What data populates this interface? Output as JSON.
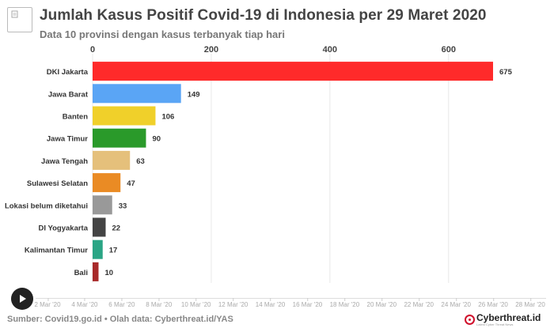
{
  "header": {
    "title": "Jumlah Kasus Positif Covid-19 di Indonesia per 29 Maret 2020",
    "subtitle": "Data 10 provinsi dengan kasus terbanyak tiap hari"
  },
  "chart_data": {
    "type": "bar",
    "orientation": "horizontal",
    "categories": [
      "DKI Jakarta",
      "Jawa Barat",
      "Banten",
      "Jawa Timur",
      "Jawa Tengah",
      "Sulawesi Selatan",
      "Lokasi belum diketahui",
      "DI Yogyakarta",
      "Kalimantan Timur",
      "Bali"
    ],
    "values": [
      675,
      149,
      106,
      90,
      63,
      47,
      33,
      22,
      17,
      10
    ],
    "colors": [
      "#ff2a2a",
      "#5aa5f5",
      "#f0d02a",
      "#2a9a2a",
      "#e5c07b",
      "#ea8b24",
      "#999999",
      "#444444",
      "#2aa585",
      "#a82a2a"
    ],
    "xlim": [
      0,
      675
    ],
    "xticks": [
      0,
      200,
      400,
      600
    ],
    "xaxis_position": "top",
    "grid": true,
    "data_labels": true
  },
  "timeline": {
    "dates": [
      "2 Mar '20",
      "4 Mar '20",
      "6 Mar '20",
      "8 Mar '20",
      "10 Mar '20",
      "12 Mar '20",
      "14 Mar '20",
      "16 Mar '20",
      "18 Mar '20",
      "20 Mar '20",
      "22 Mar '20",
      "24 Mar '20",
      "26 Mar '20",
      "28 Mar '20"
    ],
    "progress": 1.0,
    "play_icon": "play-icon"
  },
  "footer": {
    "source": "Sumber: Covid19.go.id • Olah data: Cyberthreat.id/YAS",
    "brand": "Cyberthreat.id",
    "tagline": "Latest Cyber Threat News"
  }
}
